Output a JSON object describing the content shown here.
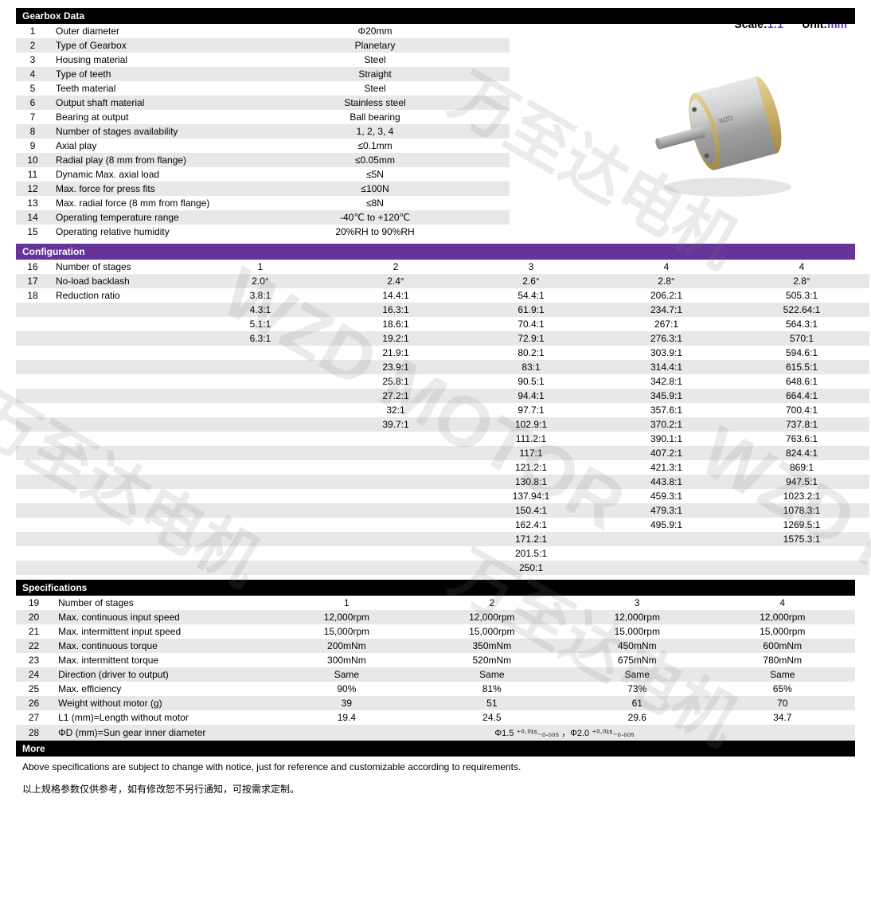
{
  "header": {
    "scale_label": "Scale:",
    "scale_value": "1:1",
    "unit_label": "Unit:",
    "unit_value": "mm"
  },
  "watermarks": {
    "cn": "万至达电机",
    "en": "WZD MOTOR"
  },
  "product_image": {
    "alt": "Planetary Gearbox",
    "body_color": "#b8b8b8",
    "end_color": "#c9b068",
    "shaft_color": "#a8a8a8"
  },
  "sections": {
    "gearbox_data": {
      "title": "Gearbox Data",
      "rows": [
        {
          "n": "1",
          "param": "Outer diameter",
          "value": "Φ20mm"
        },
        {
          "n": "2",
          "param": "Type of Gearbox",
          "value": "Planetary"
        },
        {
          "n": "3",
          "param": "Housing material",
          "value": "Steel"
        },
        {
          "n": "4",
          "param": "Type of teeth",
          "value": "Straight"
        },
        {
          "n": "5",
          "param": "Teeth material",
          "value": "Steel"
        },
        {
          "n": "6",
          "param": "Output shaft material",
          "value": "Stainless steel"
        },
        {
          "n": "7",
          "param": "Bearing at output",
          "value": "Ball bearing"
        },
        {
          "n": "8",
          "param": "Number of stages availability",
          "value": "1, 2, 3, 4"
        },
        {
          "n": "9",
          "param": "Axial play",
          "value": "≤0.1mm"
        },
        {
          "n": "10",
          "param": "Radial play (8 mm from flange)",
          "value": "≤0.05mm"
        },
        {
          "n": "11",
          "param": "Dynamic Max. axial load",
          "value": "≤5N"
        },
        {
          "n": "12",
          "param": "Max. force for press fits",
          "value": "≤100N"
        },
        {
          "n": "13",
          "param": "Max. radial force (8 mm from flange)",
          "value": "≤8N"
        },
        {
          "n": "14",
          "param": "Operating temperature range",
          "value": "-40℃ to +120℃"
        },
        {
          "n": "15",
          "param": "Operating relative humidity",
          "value": "20%RH to 90%RH"
        }
      ]
    },
    "configuration": {
      "title": "Configuration",
      "rows": [
        {
          "n": "16",
          "param": "Number of stages",
          "v": [
            "1",
            "2",
            "3",
            "4",
            "4"
          ]
        },
        {
          "n": "17",
          "param": "No-load backlash",
          "v": [
            "2.0°",
            "2.4°",
            "2.6°",
            "2.8°",
            "2.8°"
          ]
        },
        {
          "n": "18",
          "param": "Reduction ratio",
          "v": [
            "3.8:1",
            "14.4:1",
            "54.4:1",
            "206.2:1",
            "505.3:1"
          ]
        },
        {
          "n": "",
          "param": "",
          "v": [
            "4.3:1",
            "16.3:1",
            "61.9:1",
            "234.7:1",
            "522.64:1"
          ]
        },
        {
          "n": "",
          "param": "",
          "v": [
            "5.1:1",
            "18.6:1",
            "70.4:1",
            "267:1",
            "564.3:1"
          ]
        },
        {
          "n": "",
          "param": "",
          "v": [
            "6.3:1",
            "19.2:1",
            "72.9:1",
            "276.3:1",
            "570:1"
          ]
        },
        {
          "n": "",
          "param": "",
          "v": [
            "",
            "21.9:1",
            "80.2:1",
            "303.9:1",
            "594.6:1"
          ]
        },
        {
          "n": "",
          "param": "",
          "v": [
            "",
            "23.9:1",
            "83:1",
            "314.4:1",
            "615.5:1"
          ]
        },
        {
          "n": "",
          "param": "",
          "v": [
            "",
            "25.8:1",
            "90.5:1",
            "342.8:1",
            "648.6:1"
          ]
        },
        {
          "n": "",
          "param": "",
          "v": [
            "",
            "27.2:1",
            "94.4:1",
            "345.9:1",
            "664.4:1"
          ]
        },
        {
          "n": "",
          "param": "",
          "v": [
            "",
            "32:1",
            "97.7:1",
            "357.6:1",
            "700.4:1"
          ]
        },
        {
          "n": "",
          "param": "",
          "v": [
            "",
            "39.7:1",
            "102.9:1",
            "370.2:1",
            "737.8:1"
          ]
        },
        {
          "n": "",
          "param": "",
          "v": [
            "",
            "",
            "111.2:1",
            "390.1:1",
            "763.6:1"
          ]
        },
        {
          "n": "",
          "param": "",
          "v": [
            "",
            "",
            "117:1",
            "407.2:1",
            "824.4:1"
          ]
        },
        {
          "n": "",
          "param": "",
          "v": [
            "",
            "",
            "121.2:1",
            "421.3:1",
            "869:1"
          ]
        },
        {
          "n": "",
          "param": "",
          "v": [
            "",
            "",
            "130.8:1",
            "443.8:1",
            "947.5:1"
          ]
        },
        {
          "n": "",
          "param": "",
          "v": [
            "",
            "",
            "137.94:1",
            "459.3:1",
            "1023.2:1"
          ]
        },
        {
          "n": "",
          "param": "",
          "v": [
            "",
            "",
            "150.4:1",
            "479.3:1",
            "1078.3:1"
          ]
        },
        {
          "n": "",
          "param": "",
          "v": [
            "",
            "",
            "162.4:1",
            "495.9:1",
            "1269.5:1"
          ]
        },
        {
          "n": "",
          "param": "",
          "v": [
            "",
            "",
            "171.2:1",
            "",
            "1575.3:1"
          ]
        },
        {
          "n": "",
          "param": "",
          "v": [
            "",
            "",
            "201.5:1",
            "",
            ""
          ]
        },
        {
          "n": "",
          "param": "",
          "v": [
            "",
            "",
            "250:1",
            "",
            ""
          ]
        }
      ]
    },
    "specifications": {
      "title": "Specifications",
      "rows": [
        {
          "n": "19",
          "param": "Number of stages",
          "v": [
            "1",
            "2",
            "3",
            "4"
          ]
        },
        {
          "n": "20",
          "param": "Max. continuous input speed",
          "v": [
            "12,000rpm",
            "12,000rpm",
            "12,000rpm",
            "12,000rpm"
          ]
        },
        {
          "n": "21",
          "param": "Max. intermittent input speed",
          "v": [
            "15,000rpm",
            "15,000rpm",
            "15,000rpm",
            "15,000rpm"
          ]
        },
        {
          "n": "22",
          "param": "Max. continuous torque",
          "v": [
            "200mNm",
            "350mNm",
            "450mNm",
            "600mNm"
          ]
        },
        {
          "n": "23",
          "param": "Max. intermittent torque",
          "v": [
            "300mNm",
            "520mNm",
            "675mNm",
            "780mNm"
          ]
        },
        {
          "n": "24",
          "param": "Direction (driver to output)",
          "v": [
            "Same",
            "Same",
            "Same",
            "Same"
          ]
        },
        {
          "n": "25",
          "param": "Max. efficiency",
          "v": [
            "90%",
            "81%",
            "73%",
            "65%"
          ]
        },
        {
          "n": "26",
          "param": "Weight without motor (g)",
          "v": [
            "39",
            "51",
            "61",
            "70"
          ]
        },
        {
          "n": "27",
          "param": "L1 (mm)=Length without motor",
          "v": [
            "19.4",
            "24.5",
            "29.6",
            "34.7"
          ]
        },
        {
          "n": "28",
          "param": "ΦD (mm)=Sun gear inner diameter",
          "v": [
            "",
            "Φ1.5 ⁺⁰·⁰¹⁵₋₀.₀₀₅ ，Φ2.0 ⁺⁰·⁰¹⁵₋₀.₀₀₅",
            "",
            ""
          ],
          "colspan": true
        }
      ]
    },
    "more": {
      "title": "More",
      "text_en": "Above specifications are subject to change with notice, just for reference and customizable according to requirements.",
      "text_cn": "以上规格参数仅供参考，如有修改恕不另行通知，可按需求定制。"
    }
  },
  "colors": {
    "row_even": "#e8e8e8",
    "row_odd": "#ffffff",
    "header_black": "#000000",
    "header_purple": "#663399",
    "accent": "#6633cc"
  }
}
